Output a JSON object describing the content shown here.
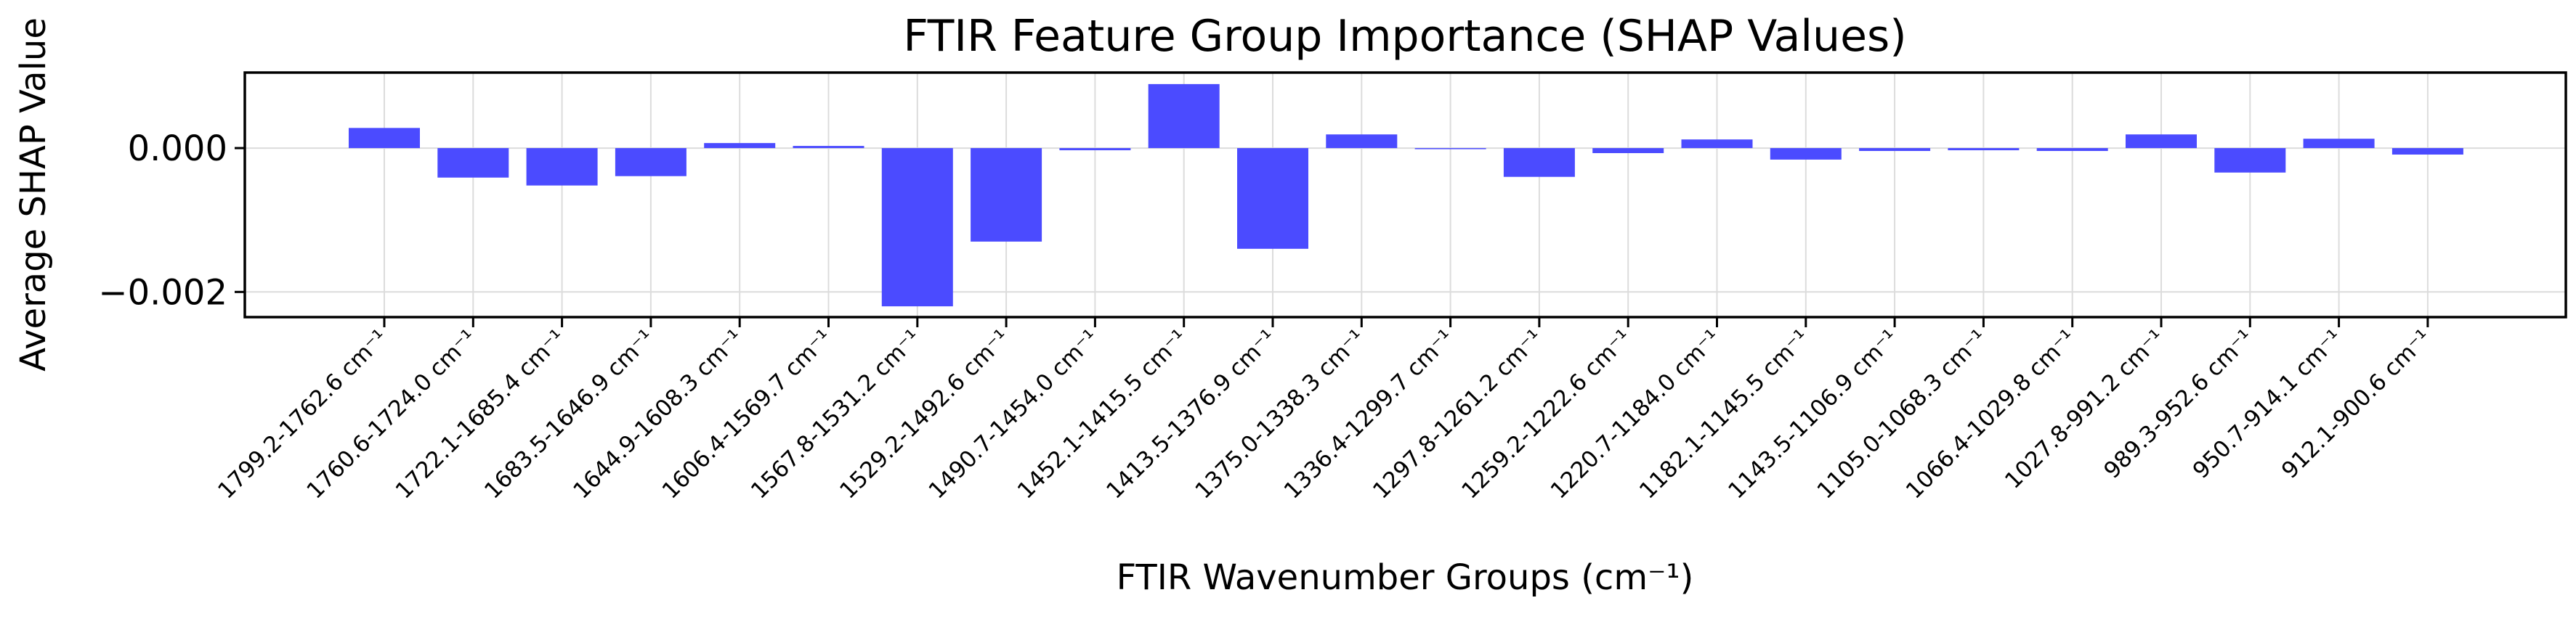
{
  "chart_data": {
    "type": "bar",
    "title": "FTIR Feature Group Importance (SHAP Values)",
    "xlabel": "FTIR Wavenumber Groups (cm⁻¹)",
    "ylabel": "Average SHAP Value",
    "categories": [
      "1799.2-1762.6 cm⁻¹",
      "1760.6-1724.0 cm⁻¹",
      "1722.1-1685.4 cm⁻¹",
      "1683.5-1646.9 cm⁻¹",
      "1644.9-1608.3 cm⁻¹",
      "1606.4-1569.7 cm⁻¹",
      "1567.8-1531.2 cm⁻¹",
      "1529.2-1492.6 cm⁻¹",
      "1490.7-1454.0 cm⁻¹",
      "1452.1-1415.5 cm⁻¹",
      "1413.5-1376.9 cm⁻¹",
      "1375.0-1338.3 cm⁻¹",
      "1336.4-1299.7 cm⁻¹",
      "1297.8-1261.2 cm⁻¹",
      "1259.2-1222.6 cm⁻¹",
      "1220.7-1184.0 cm⁻¹",
      "1182.1-1145.5 cm⁻¹",
      "1143.5-1106.9 cm⁻¹",
      "1105.0-1068.3 cm⁻¹",
      "1066.4-1029.8 cm⁻¹",
      "1027.8-991.2 cm⁻¹",
      "989.3-952.6 cm⁻¹",
      "950.7-914.1 cm⁻¹",
      "912.1-900.6 cm⁻¹"
    ],
    "values": [
      0.00028,
      -0.00041,
      -0.00052,
      -0.00039,
      7e-05,
      3e-05,
      -0.0022,
      -0.0013,
      -3e-05,
      0.00089,
      -0.0014,
      0.00019,
      -1e-05,
      -0.0004,
      -7e-05,
      0.00012,
      -0.00016,
      -4e-05,
      -3e-05,
      -4e-05,
      0.00019,
      -0.00034,
      0.00013,
      -9e-05
    ],
    "ylim": [
      -0.00235,
      0.00105
    ],
    "yticks": [
      0.0,
      -0.002
    ],
    "ytick_labels": [
      "0.000",
      "−0.002"
    ],
    "grid": true,
    "bar_color": "#4b4bff",
    "grid_color": "#dcdcdc"
  }
}
